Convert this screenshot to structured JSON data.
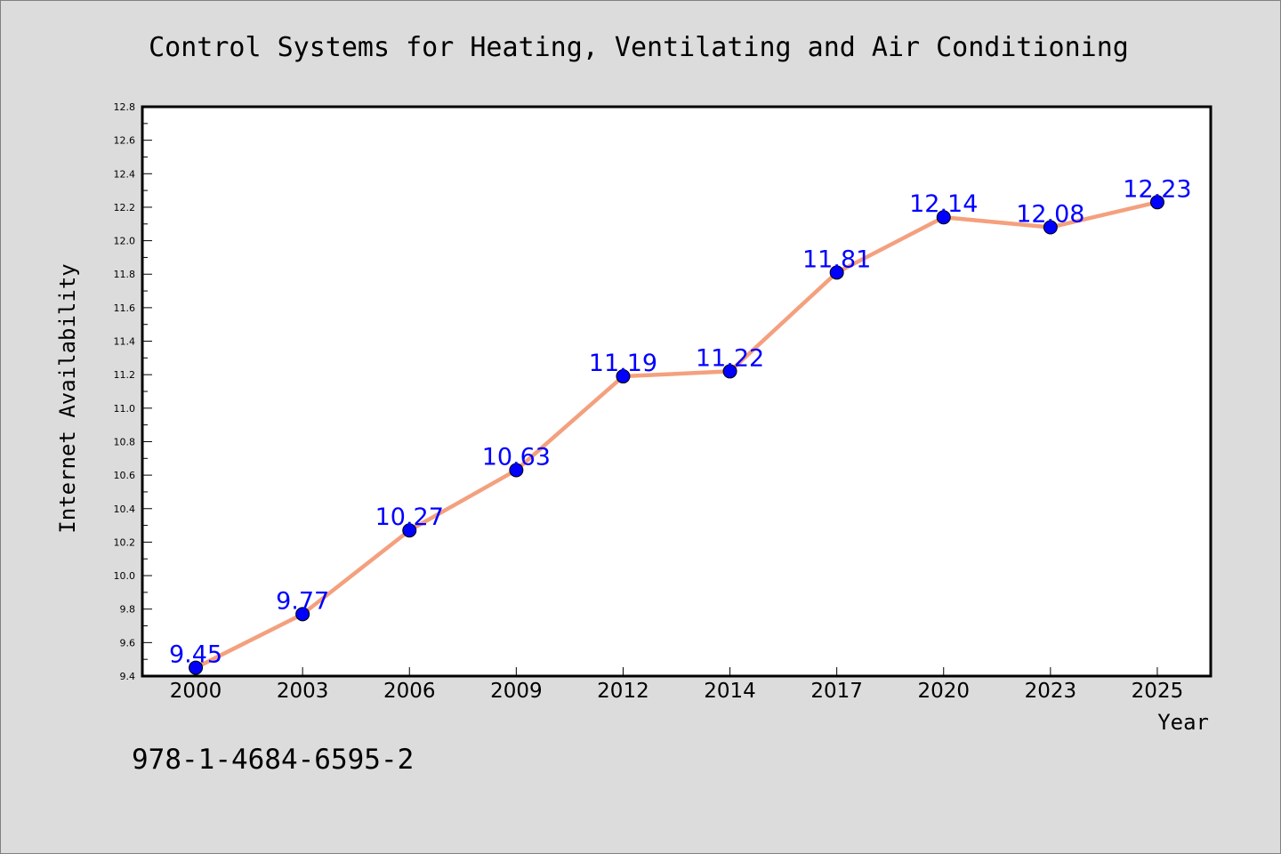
{
  "chart_data": {
    "type": "line",
    "title": "Control Systems for Heating, Ventilating and Air Conditioning",
    "xlabel": "Year",
    "ylabel": "Internet Availability",
    "categories": [
      "2000",
      "2003",
      "2006",
      "2009",
      "2012",
      "2014",
      "2017",
      "2020",
      "2023",
      "2025"
    ],
    "series": [
      {
        "values": [
          9.45,
          9.77,
          10.27,
          10.63,
          11.19,
          11.22,
          11.81,
          12.14,
          12.08,
          12.23
        ]
      }
    ],
    "ylim": [
      9.4,
      12.8
    ],
    "yticks": [
      "9.4",
      "9.6",
      "9.8",
      "10.0",
      "10.2",
      "10.4",
      "10.6",
      "10.8",
      "11.0",
      "11.2",
      "11.4",
      "11.6",
      "11.8",
      "12.0",
      "12.2",
      "12.4",
      "12.6",
      "12.8"
    ],
    "data_labels": [
      "9.45",
      "9.77",
      "10.27",
      "10.63",
      "11.19",
      "11.22",
      "11.81",
      "12.14",
      "12.08",
      "12.23"
    ],
    "grid": false,
    "legend": "none",
    "colors": {
      "line": "#f4a07e",
      "marker": "#0000ff",
      "data_label": "#0000ff",
      "background": "#dcdcdc",
      "plot_background": "#ffffff"
    }
  },
  "footer": {
    "isbn": "978-1-4684-6595-2"
  }
}
